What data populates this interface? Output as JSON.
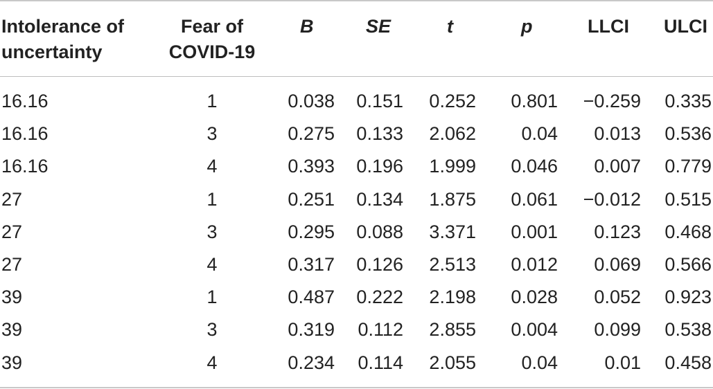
{
  "table": {
    "headers": {
      "iu": [
        "Intolerance of",
        "uncertainty"
      ],
      "fear": [
        "Fear of",
        "COVID-19"
      ],
      "b": "B",
      "se": "SE",
      "t": "t",
      "p": "p",
      "llci": "LLCI",
      "ulci": "ULCI"
    },
    "rows": [
      {
        "iu": "16.16",
        "fear": "1",
        "b": "0.038",
        "se": "0.151",
        "t": "0.252",
        "p": "0.801",
        "llci": "−0.259",
        "ulci": "0.335"
      },
      {
        "iu": "16.16",
        "fear": "3",
        "b": "0.275",
        "se": "0.133",
        "t": "2.062",
        "p": "0.04",
        "llci": "0.013",
        "ulci": "0.536"
      },
      {
        "iu": "16.16",
        "fear": "4",
        "b": "0.393",
        "se": "0.196",
        "t": "1.999",
        "p": "0.046",
        "llci": "0.007",
        "ulci": "0.779"
      },
      {
        "iu": "27",
        "fear": "1",
        "b": "0.251",
        "se": "0.134",
        "t": "1.875",
        "p": "0.061",
        "llci": "−0.012",
        "ulci": "0.515"
      },
      {
        "iu": "27",
        "fear": "3",
        "b": "0.295",
        "se": "0.088",
        "t": "3.371",
        "p": "0.001",
        "llci": "0.123",
        "ulci": "0.468"
      },
      {
        "iu": "27",
        "fear": "4",
        "b": "0.317",
        "se": "0.126",
        "t": "2.513",
        "p": "0.012",
        "llci": "0.069",
        "ulci": "0.566"
      },
      {
        "iu": "39",
        "fear": "1",
        "b": "0.487",
        "se": "0.222",
        "t": "2.198",
        "p": "0.028",
        "llci": "0.052",
        "ulci": "0.923"
      },
      {
        "iu": "39",
        "fear": "3",
        "b": "0.319",
        "se": "0.112",
        "t": "2.855",
        "p": "0.004",
        "llci": "0.099",
        "ulci": "0.538"
      },
      {
        "iu": "39",
        "fear": "4",
        "b": "0.234",
        "se": "0.114",
        "t": "2.055",
        "p": "0.04",
        "llci": "0.01",
        "ulci": "0.458"
      }
    ]
  }
}
